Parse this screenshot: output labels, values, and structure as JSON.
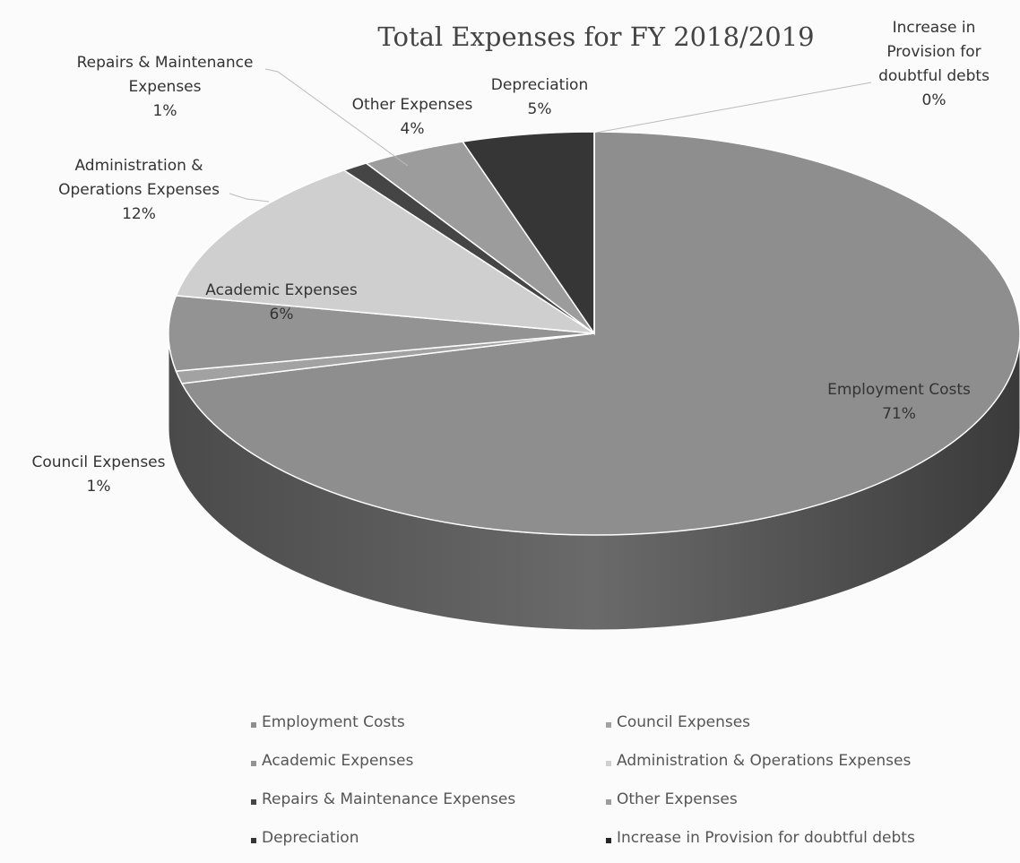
{
  "chart_data": {
    "type": "pie",
    "title": "Total Expenses for FY 2018/2019",
    "categories": [
      "Employment Costs",
      "Council Expenses",
      "Academic Expenses",
      "Administration & Operations Expenses",
      "Repairs & Maintenance Expenses",
      "Other Expenses",
      "Depreciation",
      "Increase in Provision for doubtful debts"
    ],
    "values": [
      71,
      1,
      6,
      12,
      1,
      4,
      5,
      0
    ],
    "value_labels": [
      "71%",
      "1%",
      "6%",
      "12%",
      "1%",
      "4%",
      "5%",
      "0%"
    ],
    "colors": [
      "#8e8e8e",
      "#a2a2a2",
      "#939393",
      "#cfcfcf",
      "#454545",
      "#9c9c9c",
      "#363636",
      "#252525"
    ]
  }
}
